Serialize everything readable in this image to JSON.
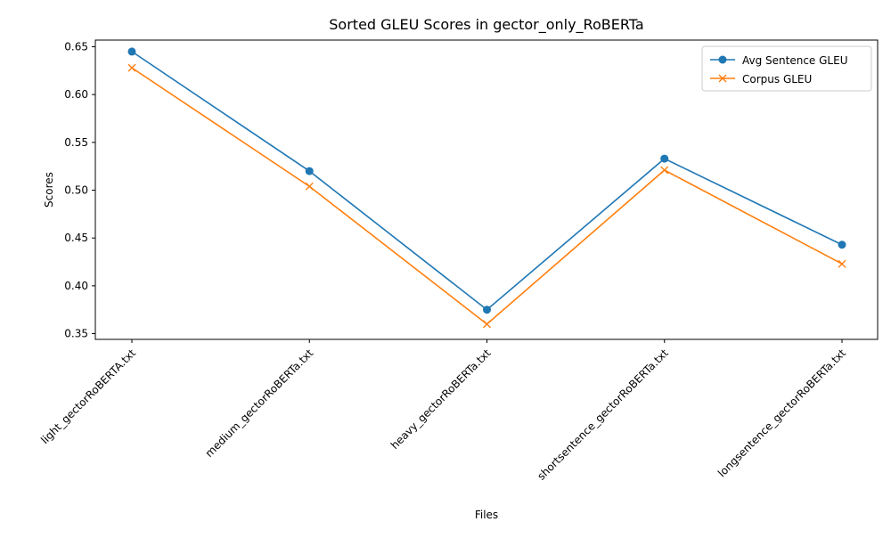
{
  "chart_data": {
    "type": "line",
    "title": "Sorted GLEU Scores in gector_only_RoBERTa",
    "xlabel": "Files",
    "ylabel": "Scores",
    "categories": [
      "light_gectorRoBERTA.txt",
      "medium_gectorRoBERTa.txt",
      "heavy_gectorRoBERTa.txt",
      "shortsentence_gectorRoBERTa.txt",
      "longsentence_gectorRoBERTa.txt"
    ],
    "yticks": [
      "0.35",
      "0.40",
      "0.45",
      "0.50",
      "0.55",
      "0.60",
      "0.65"
    ],
    "ylim": [
      0.344,
      0.657
    ],
    "grid": false,
    "legend_position": "top-right",
    "series": [
      {
        "name": "Avg Sentence GLEU",
        "marker": "circle",
        "color": "#1f77b4",
        "values": [
          0.645,
          0.52,
          0.375,
          0.533,
          0.443
        ]
      },
      {
        "name": "Corpus GLEU",
        "marker": "x",
        "color": "#ff7f0e",
        "values": [
          0.628,
          0.504,
          0.36,
          0.521,
          0.423
        ]
      }
    ]
  }
}
